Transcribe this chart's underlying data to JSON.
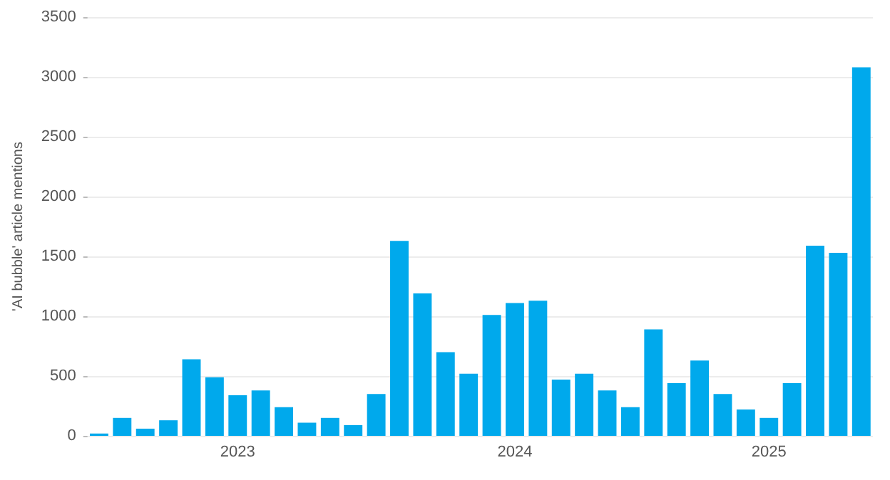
{
  "chart_data": {
    "type": "bar",
    "ylabel": "'AI bubble' article mentions",
    "categories": [
      null,
      null,
      null,
      null,
      null,
      null,
      "2023",
      null,
      null,
      null,
      null,
      null,
      null,
      null,
      null,
      null,
      null,
      null,
      "2024",
      null,
      null,
      null,
      null,
      null,
      null,
      null,
      null,
      null,
      null,
      "2025",
      null,
      null,
      null,
      null
    ],
    "values": [
      20,
      150,
      60,
      130,
      640,
      490,
      340,
      380,
      240,
      110,
      150,
      90,
      350,
      1630,
      1190,
      700,
      520,
      1010,
      1110,
      1130,
      470,
      520,
      380,
      240,
      890,
      440,
      630,
      350,
      220,
      150,
      440,
      1590,
      1530,
      3080
    ],
    "color": "#00a9ec",
    "ylim": [
      0,
      3500
    ],
    "yticks": [
      0,
      500,
      1000,
      1500,
      2000,
      2500,
      3000,
      3500
    ],
    "grid": "y"
  }
}
